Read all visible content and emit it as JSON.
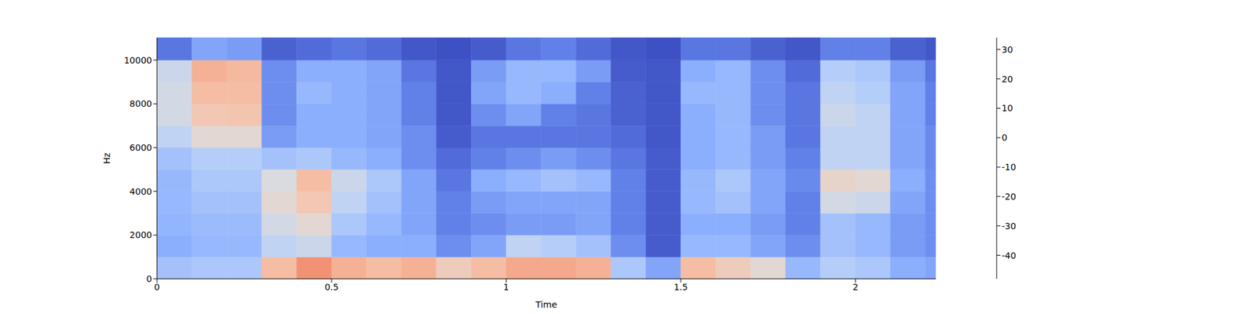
{
  "chart_data": {
    "type": "heatmap",
    "x_label": "Time",
    "y_label": "Hz",
    "xlim": [
      0,
      2.23
    ],
    "ylim": [
      0,
      11025
    ],
    "xticks": [
      0,
      0.5,
      1,
      1.5,
      2
    ],
    "yticks": [
      0,
      2000,
      4000,
      6000,
      8000,
      10000
    ],
    "x_edges": [
      0,
      0.1,
      0.2,
      0.3,
      0.4,
      0.5,
      0.6,
      0.7,
      0.8,
      0.9,
      1.0,
      1.1,
      1.2,
      1.3,
      1.4,
      1.5,
      1.6,
      1.7,
      1.8,
      1.9,
      2.0,
      2.1,
      2.2,
      2.23
    ],
    "y_edges": [
      0,
      1000,
      2000,
      3000,
      4000,
      5000,
      6000,
      7000,
      8000,
      9000,
      10000,
      11025
    ],
    "cells": [
      [
        -22,
        -20,
        -20,
        5,
        15,
        8,
        5,
        8,
        0,
        5,
        10,
        10,
        8,
        -20,
        -30,
        5,
        0,
        -5,
        -25,
        -18,
        -20,
        -28,
        -30
      ],
      [
        -28,
        -25,
        -25,
        -15,
        -12,
        -25,
        -28,
        -28,
        -35,
        -30,
        -15,
        -18,
        -22,
        -35,
        -45,
        -25,
        -25,
        -30,
        -35,
        -22,
        -25,
        -32,
        -35
      ],
      [
        -26,
        -24,
        -24,
        -10,
        -5,
        -20,
        -25,
        -30,
        -38,
        -35,
        -32,
        -32,
        -30,
        -38,
        -45,
        -28,
        -28,
        -32,
        -38,
        -22,
        -25,
        -32,
        -35
      ],
      [
        -25,
        -22,
        -22,
        -5,
        2,
        -15,
        -22,
        -30,
        -38,
        -32,
        -30,
        -30,
        -30,
        -38,
        -45,
        -25,
        -22,
        -30,
        -38,
        -10,
        -12,
        -30,
        -35
      ],
      [
        -25,
        -20,
        -20,
        -8,
        5,
        -12,
        -20,
        -30,
        -40,
        -28,
        -25,
        -22,
        -25,
        -38,
        -45,
        -25,
        -20,
        -30,
        -36,
        -3,
        -5,
        -28,
        -35
      ],
      [
        -22,
        -18,
        -18,
        -22,
        -20,
        -25,
        -28,
        -35,
        -42,
        -38,
        -35,
        -32,
        -35,
        -40,
        -45,
        -28,
        -25,
        -32,
        -38,
        -15,
        -15,
        -30,
        -36
      ],
      [
        -15,
        -5,
        -5,
        -32,
        -28,
        -28,
        -30,
        -35,
        -45,
        -40,
        -40,
        -40,
        -40,
        -42,
        -46,
        -28,
        -25,
        -32,
        -40,
        -15,
        -15,
        -30,
        -36
      ],
      [
        -10,
        2,
        3,
        -35,
        -28,
        -28,
        -30,
        -38,
        -46,
        -35,
        -30,
        -38,
        -40,
        -44,
        -46,
        -28,
        -25,
        -35,
        -40,
        -12,
        -15,
        -30,
        -38
      ],
      [
        -10,
        5,
        5,
        -35,
        -25,
        -28,
        -30,
        -38,
        -46,
        -30,
        -25,
        -28,
        -38,
        -44,
        -46,
        -25,
        -25,
        -35,
        -40,
        -15,
        -18,
        -30,
        -38
      ],
      [
        -12,
        8,
        6,
        -35,
        -28,
        -28,
        -30,
        -40,
        -46,
        -32,
        -25,
        -25,
        -32,
        -45,
        -46,
        -28,
        -25,
        -35,
        -42,
        -18,
        -20,
        -32,
        -40
      ],
      [
        -40,
        -30,
        -32,
        -44,
        -42,
        -40,
        -42,
        -46,
        -47,
        -45,
        -40,
        -38,
        -42,
        -46,
        -47,
        -40,
        -40,
        -44,
        -46,
        -38,
        -38,
        -44,
        -46
      ]
    ],
    "colorbar": {
      "range": [
        -48,
        34
      ],
      "ticks": [
        -40,
        -30,
        -20,
        -10,
        0,
        10,
        20,
        30
      ]
    }
  }
}
